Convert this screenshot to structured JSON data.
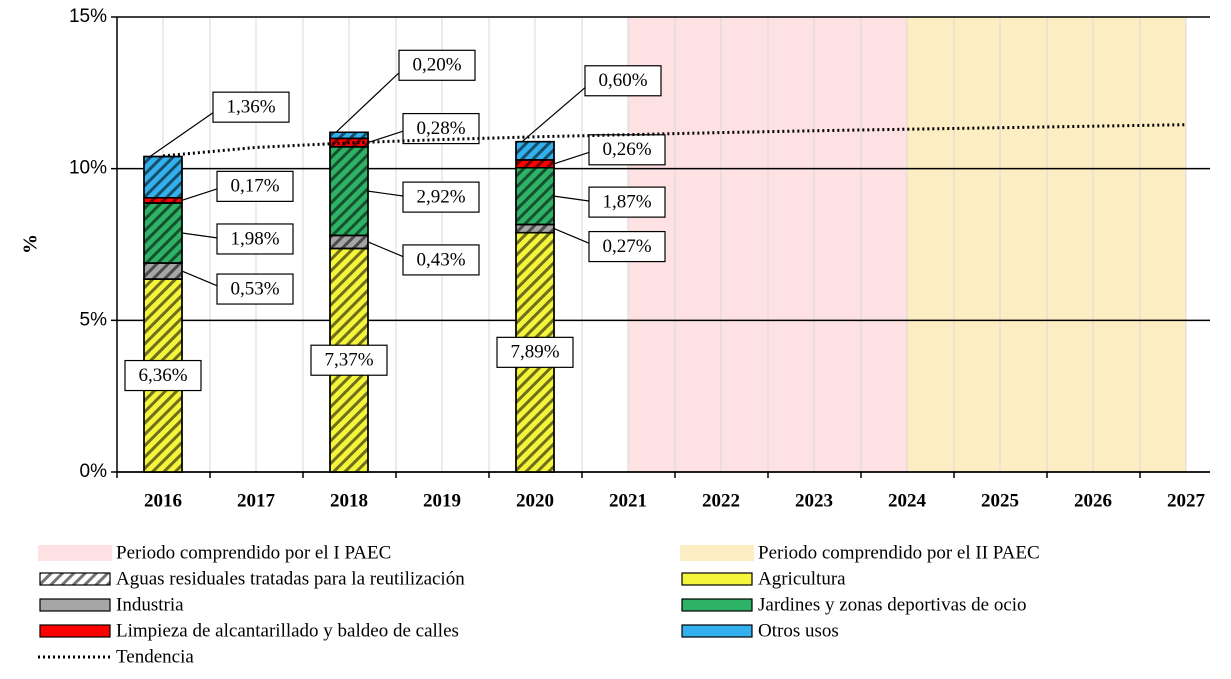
{
  "chart_data": {
    "type": "bar",
    "stacked": true,
    "y_label": "%",
    "categories": [
      "2016",
      "2017",
      "2018",
      "2019",
      "2020",
      "2021",
      "2022",
      "2023",
      "2024",
      "2025",
      "2026",
      "2027"
    ],
    "ylim": [
      0,
      15
    ],
    "yticks": [
      {
        "value": 0,
        "label": "0%"
      },
      {
        "value": 5,
        "label": "5%"
      },
      {
        "value": 10,
        "label": "10%"
      },
      {
        "value": 15,
        "label": "15%"
      }
    ],
    "grid": true,
    "bands": [
      {
        "name": "Periodo comprendido por el I PAEC",
        "color": "#fde1e3",
        "from": "2021",
        "to": "2024"
      },
      {
        "name": "Periodo comprendido por el II PAEC",
        "color": "#fdedc2",
        "from": "2024",
        "to": "2027"
      }
    ],
    "hatch": {
      "name": "Aguas residuales tratadas para la reutilización",
      "pattern": "diagonal"
    },
    "series": [
      {
        "name": "Agricultura",
        "color": "#f5f53c",
        "values": [
          6.36,
          null,
          7.37,
          null,
          7.89,
          null,
          null,
          null,
          null,
          null,
          null,
          null
        ],
        "value_labels": [
          "6,36%",
          null,
          "7,37%",
          null,
          "7,89%",
          null,
          null,
          null,
          null,
          null,
          null,
          null
        ]
      },
      {
        "name": "Industria",
        "color": "#a6a6a6",
        "values": [
          0.53,
          null,
          0.43,
          null,
          0.27,
          null,
          null,
          null,
          null,
          null,
          null,
          null
        ],
        "value_labels": [
          "0,53%",
          null,
          "0,43%",
          null,
          "0,27%",
          null,
          null,
          null,
          null,
          null,
          null,
          null
        ]
      },
      {
        "name": "Jardines y zonas deportivas de ocio",
        "color": "#2eb366",
        "values": [
          1.98,
          null,
          2.92,
          null,
          1.87,
          null,
          null,
          null,
          null,
          null,
          null,
          null
        ],
        "value_labels": [
          "1,98%",
          null,
          "2,92%",
          null,
          "1,87%",
          null,
          null,
          null,
          null,
          null,
          null,
          null
        ]
      },
      {
        "name": "Limpieza de alcantarillado y baldeo de calles",
        "color": "#ff0000",
        "values": [
          0.17,
          null,
          0.28,
          null,
          0.26,
          null,
          null,
          null,
          null,
          null,
          null,
          null
        ],
        "value_labels": [
          "0,17%",
          null,
          "0,28%",
          null,
          "0,26%",
          null,
          null,
          null,
          null,
          null,
          null,
          null
        ]
      },
      {
        "name": "Otros usos",
        "color": "#33b0ee",
        "values": [
          1.36,
          null,
          0.2,
          null,
          0.6,
          null,
          null,
          null,
          null,
          null,
          null,
          null
        ],
        "value_labels": [
          "1,36%",
          null,
          "0,20%",
          null,
          "0,60%",
          null,
          null,
          null,
          null,
          null,
          null,
          null
        ]
      }
    ],
    "trend": {
      "name": "Tendencia",
      "color": "#000000",
      "style": "dotted",
      "values": [
        10.42,
        10.7,
        10.85,
        10.96,
        11.05,
        11.12,
        11.19,
        11.25,
        11.3,
        11.35,
        11.4,
        11.45
      ]
    }
  }
}
